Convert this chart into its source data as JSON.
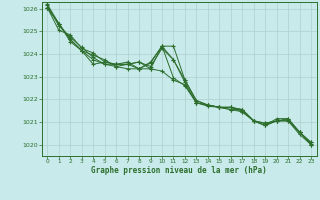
{
  "background_color": "#c8eaea",
  "grid_color": "#b0d0d0",
  "line_color": "#2d6e2d",
  "xlabel": "Graphe pression niveau de la mer (hPa)",
  "ylim": [
    1019.5,
    1026.3
  ],
  "xlim": [
    -0.5,
    23.5
  ],
  "yticks": [
    1020,
    1021,
    1022,
    1023,
    1024,
    1025,
    1026
  ],
  "xticks": [
    0,
    1,
    2,
    3,
    4,
    5,
    6,
    7,
    8,
    9,
    10,
    11,
    12,
    13,
    14,
    15,
    16,
    17,
    18,
    19,
    20,
    21,
    22,
    23
  ],
  "series": [
    [
      1026.15,
      1025.25,
      1024.75,
      1024.3,
      1023.85,
      1023.55,
      1023.45,
      1023.35,
      1023.35,
      1023.6,
      1024.35,
      1022.95,
      1022.6,
      1021.85,
      1021.7,
      1021.65,
      1021.65,
      1021.55,
      1021.05,
      1020.85,
      1021.05,
      1021.05,
      1020.55,
      1020.1
    ],
    [
      1026.05,
      1025.05,
      1024.85,
      1024.25,
      1024.05,
      1023.65,
      1023.55,
      1023.55,
      1023.65,
      1023.35,
      1023.25,
      1022.85,
      1022.65,
      1021.85,
      1021.75,
      1021.65,
      1021.65,
      1021.45,
      1021.05,
      1020.85,
      1021.15,
      1021.15,
      1020.55,
      1020.1
    ],
    [
      1026.05,
      1025.35,
      1024.65,
      1024.15,
      1023.95,
      1023.75,
      1023.45,
      1023.55,
      1023.65,
      1023.45,
      1024.25,
      1023.75,
      1022.85,
      1021.95,
      1021.75,
      1021.65,
      1021.55,
      1021.45,
      1021.05,
      1020.95,
      1021.05,
      1021.05,
      1020.45,
      1020.0
    ],
    [
      1026.05,
      1025.35,
      1024.65,
      1024.15,
      1023.75,
      1023.55,
      1023.55,
      1023.55,
      1023.35,
      1023.35,
      1024.35,
      1023.75,
      1022.75,
      1021.85,
      1021.75,
      1021.65,
      1021.55,
      1021.55,
      1021.05,
      1020.95,
      1021.05,
      1021.15,
      1020.55,
      1020.05
    ],
    [
      1026.2,
      1025.35,
      1024.55,
      1024.15,
      1023.55,
      1023.65,
      1023.55,
      1023.65,
      1023.35,
      1023.65,
      1024.35,
      1024.35,
      1022.85,
      1021.95,
      1021.75,
      1021.65,
      1021.65,
      1021.55,
      1021.05,
      1020.85,
      1021.05,
      1021.1,
      1020.55,
      1020.0
    ]
  ]
}
